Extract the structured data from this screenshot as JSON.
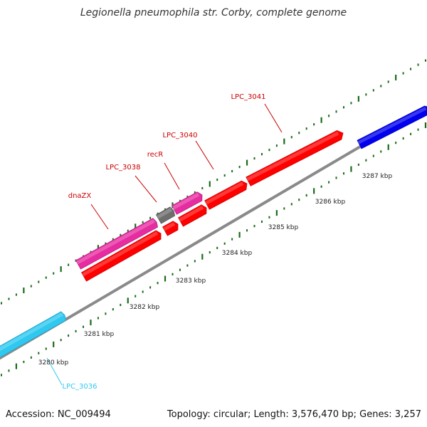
{
  "title": "Legionella pneumophila str. Corby, complete genome",
  "footer": {
    "accession": "Accession: NC_009494",
    "info": "Topology: circular; Length: 3,576,470 bp; Genes: 3,257"
  },
  "colors": {
    "backbone": "#8a8a8a",
    "tick_major": "#1a6b1a",
    "tick_minor": "#1a6b1a",
    "red": "#ff0000",
    "magenta": "#e62ca0",
    "gray": "#6e6e6e",
    "blue": "#0000ee",
    "cyan": "#2ec8f0"
  },
  "genes": [
    {
      "name": "dnaZX",
      "label_color": "#cc0000",
      "fill": "magenta"
    },
    {
      "name": "LPC_3038",
      "label_color": "#cc0000",
      "fill": "red"
    },
    {
      "name": "recR",
      "label_color": "#cc0000",
      "fill": "gray"
    },
    {
      "name": "LPC_3040",
      "label_color": "#cc0000",
      "fill": "red"
    },
    {
      "name": "LPC_3041",
      "label_color": "#cc0000",
      "fill": "red"
    },
    {
      "name": "LPC_3036",
      "label_color": "#2ec8f0",
      "fill": "cyan"
    }
  ],
  "kbp_ticks": [
    "3280 kbp",
    "3281 kbp",
    "3282 kbp",
    "3283 kbp",
    "3284 kbp",
    "3285 kbp",
    "3286 kbp",
    "3287 kbp"
  ]
}
